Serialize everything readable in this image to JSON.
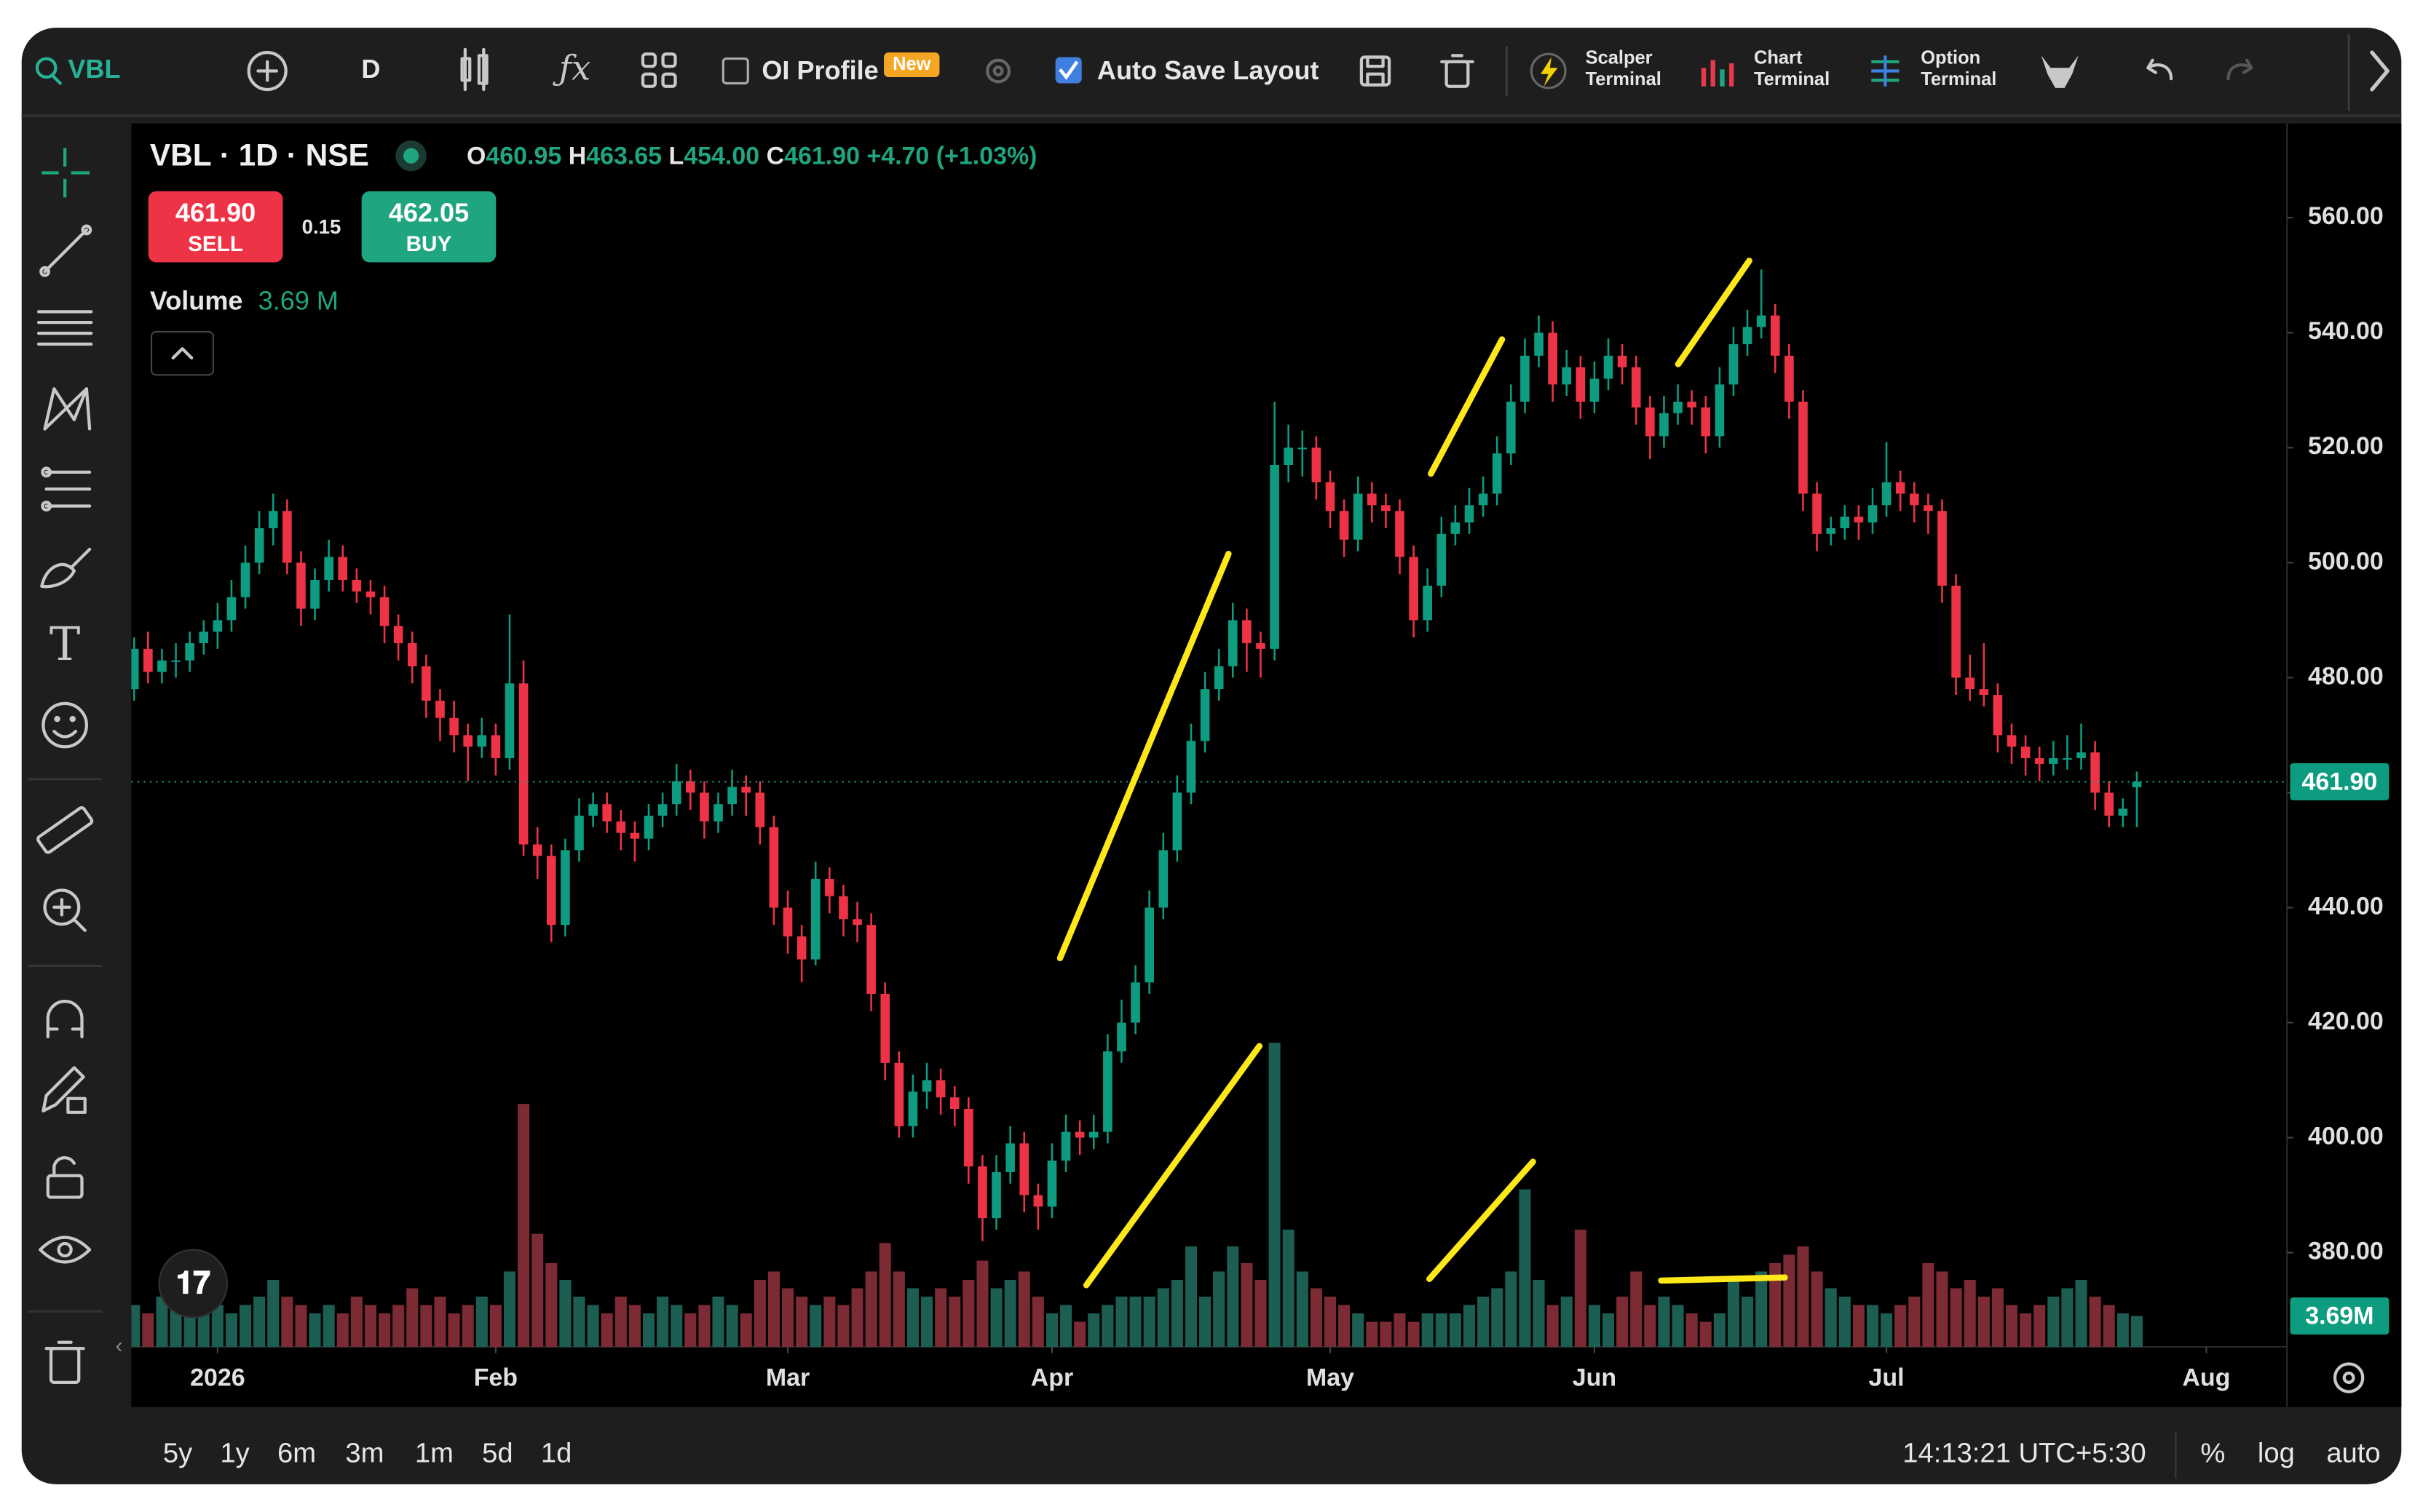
{
  "toolbar": {
    "symbol": "VBL",
    "interval": "D",
    "oi_profile": "OI Profile",
    "badge": "New",
    "auto_save": "Auto Save Layout",
    "scalper": [
      "Scalper",
      "Terminal"
    ],
    "chart_terminal": [
      "Chart",
      "Terminal"
    ],
    "option_terminal": [
      "Option",
      "Terminal"
    ]
  },
  "legend": {
    "title": "VBL · 1D · NSE",
    "open_key": "O",
    "open": "460.95",
    "high_key": "H",
    "high": "463.65",
    "low_key": "L",
    "low": "454.00",
    "close_key": "C",
    "close": "461.90",
    "change": "+4.70 (+1.03%)",
    "sell_price": "461.90",
    "sell": "SELL",
    "spread": "0.15",
    "buy_price": "462.05",
    "buy": "BUY",
    "volume_key": "Volume",
    "volume": "3.69 M"
  },
  "chart_data": {
    "type": "candlestick",
    "up_color": "#0d9c80",
    "down_color": "#ef3346",
    "volume_up_color": "#1c5f52",
    "volume_down_color": "#7c2a34",
    "grid": false,
    "xlim": [
      -0.2,
      154.8
    ],
    "xticks": [
      {
        "value": 6,
        "label": "2026"
      },
      {
        "value": 26,
        "label": "Feb"
      },
      {
        "value": 47,
        "label": "Mar"
      },
      {
        "value": 66,
        "label": "Apr"
      },
      {
        "value": 86,
        "label": "May"
      },
      {
        "value": 105,
        "label": "Jun"
      },
      {
        "value": 126,
        "label": "Jul"
      },
      {
        "value": 149,
        "label": "Aug"
      }
    ],
    "ylim": [
      363.6,
      576.4
    ],
    "yticks": [
      {
        "value": 380,
        "label": "380.00"
      },
      {
        "value": 400,
        "label": "400.00"
      },
      {
        "value": 420,
        "label": "420.00"
      },
      {
        "value": 440,
        "label": "440.00"
      },
      {
        "value": 460,
        "label": "460.00"
      },
      {
        "value": 480,
        "label": "480.00"
      },
      {
        "value": 500,
        "label": "500.00"
      },
      {
        "value": 520,
        "label": "520.00"
      },
      {
        "value": 540,
        "label": "540.00"
      },
      {
        "value": 560,
        "label": "560.00"
      }
    ],
    "y2lim": [
      0,
      146
    ],
    "last_price": {
      "value": 461.9,
      "label": "461.90"
    },
    "last_volume": {
      "value": 3.69,
      "label": "3.69M"
    },
    "candles": [
      [
        478,
        487,
        476,
        485
      ],
      [
        485,
        488,
        479,
        481
      ],
      [
        481,
        485,
        479,
        483
      ],
      [
        483,
        486,
        480,
        483
      ],
      [
        483,
        488,
        481,
        486
      ],
      [
        486,
        490,
        484,
        488
      ],
      [
        488,
        493,
        485,
        490
      ],
      [
        490,
        497,
        488,
        494
      ],
      [
        494,
        503,
        492,
        500
      ],
      [
        500,
        509,
        498,
        506
      ],
      [
        506,
        512,
        503,
        509
      ],
      [
        509,
        511,
        498,
        500
      ],
      [
        500,
        502,
        489,
        492
      ],
      [
        492,
        499,
        490,
        497
      ],
      [
        497,
        504,
        495,
        501
      ],
      [
        501,
        503,
        495,
        497
      ],
      [
        497,
        499,
        493,
        495
      ],
      [
        495,
        497,
        491,
        494
      ],
      [
        494,
        496,
        486,
        489
      ],
      [
        489,
        491,
        483,
        486
      ],
      [
        486,
        488,
        479,
        482
      ],
      [
        482,
        484,
        473,
        476
      ],
      [
        476,
        478,
        469,
        473
      ],
      [
        473,
        476,
        467,
        470
      ],
      [
        470,
        472,
        462,
        468
      ],
      [
        468,
        473,
        466,
        470
      ],
      [
        470,
        472,
        463,
        466
      ],
      [
        466,
        491,
        464,
        479
      ],
      [
        479,
        483,
        449,
        451
      ],
      [
        451,
        454,
        445,
        449
      ],
      [
        449,
        451,
        434,
        437
      ],
      [
        437,
        452,
        435,
        450
      ],
      [
        450,
        459,
        448,
        456
      ],
      [
        456,
        460,
        454,
        458
      ],
      [
        458,
        460,
        453,
        455
      ],
      [
        455,
        457,
        450,
        453
      ],
      [
        453,
        455,
        448,
        452
      ],
      [
        452,
        458,
        450,
        456
      ],
      [
        456,
        460,
        454,
        458
      ],
      [
        458,
        465,
        456,
        462
      ],
      [
        462,
        464,
        457,
        460
      ],
      [
        460,
        462,
        452,
        455
      ],
      [
        455,
        460,
        453,
        458
      ],
      [
        458,
        464,
        456,
        461
      ],
      [
        461,
        463,
        456,
        460
      ],
      [
        460,
        462,
        451,
        454
      ],
      [
        454,
        456,
        437,
        440
      ],
      [
        440,
        443,
        432,
        435
      ],
      [
        435,
        437,
        427,
        431
      ],
      [
        431,
        448,
        430,
        445
      ],
      [
        445,
        447,
        439,
        442
      ],
      [
        442,
        444,
        435,
        438
      ],
      [
        438,
        441,
        434,
        437
      ],
      [
        437,
        439,
        422,
        425
      ],
      [
        425,
        427,
        410,
        413
      ],
      [
        413,
        415,
        400,
        402
      ],
      [
        402,
        411,
        400,
        408
      ],
      [
        408,
        413,
        405,
        410
      ],
      [
        410,
        412,
        404,
        407
      ],
      [
        407,
        409,
        402,
        405
      ],
      [
        405,
        407,
        392,
        395
      ],
      [
        395,
        397,
        382,
        386
      ],
      [
        386,
        397,
        384,
        394
      ],
      [
        394,
        402,
        392,
        399
      ],
      [
        399,
        401,
        387,
        390
      ],
      [
        390,
        392,
        384,
        388
      ],
      [
        388,
        399,
        386,
        396
      ],
      [
        396,
        404,
        394,
        401
      ],
      [
        401,
        403,
        397,
        400
      ],
      [
        400,
        404,
        398,
        401
      ],
      [
        401,
        418,
        399,
        415
      ],
      [
        415,
        424,
        413,
        420
      ],
      [
        420,
        430,
        418,
        427
      ],
      [
        427,
        443,
        425,
        440
      ],
      [
        440,
        453,
        438,
        450
      ],
      [
        450,
        463,
        448,
        460
      ],
      [
        460,
        472,
        458,
        469
      ],
      [
        469,
        481,
        467,
        478
      ],
      [
        478,
        485,
        476,
        482
      ],
      [
        482,
        493,
        480,
        490
      ],
      [
        490,
        492,
        481,
        486
      ],
      [
        486,
        488,
        480,
        485
      ],
      [
        485,
        528,
        483,
        517
      ],
      [
        517,
        524,
        514,
        520
      ],
      [
        520,
        523,
        515,
        520
      ],
      [
        520,
        522,
        511,
        514
      ],
      [
        514,
        516,
        506,
        509
      ],
      [
        509,
        511,
        501,
        504
      ],
      [
        504,
        515,
        502,
        512
      ],
      [
        512,
        514,
        507,
        510
      ],
      [
        510,
        512,
        506,
        509
      ],
      [
        509,
        511,
        498,
        501
      ],
      [
        501,
        503,
        487,
        490
      ],
      [
        490,
        499,
        488,
        496
      ],
      [
        496,
        508,
        494,
        505
      ],
      [
        505,
        510,
        503,
        507
      ],
      [
        507,
        513,
        505,
        510
      ],
      [
        510,
        515,
        508,
        512
      ],
      [
        512,
        522,
        510,
        519
      ],
      [
        519,
        531,
        517,
        528
      ],
      [
        528,
        539,
        526,
        536
      ],
      [
        536,
        543,
        534,
        540
      ],
      [
        540,
        542,
        528,
        531
      ],
      [
        531,
        537,
        529,
        534
      ],
      [
        534,
        536,
        525,
        528
      ],
      [
        528,
        535,
        526,
        532
      ],
      [
        532,
        539,
        530,
        536
      ],
      [
        536,
        538,
        531,
        534
      ],
      [
        534,
        536,
        524,
        527
      ],
      [
        527,
        529,
        518,
        522
      ],
      [
        522,
        529,
        520,
        526
      ],
      [
        526,
        531,
        524,
        528
      ],
      [
        528,
        530,
        524,
        527
      ],
      [
        527,
        529,
        519,
        522
      ],
      [
        522,
        534,
        520,
        531
      ],
      [
        531,
        541,
        529,
        538
      ],
      [
        538,
        544,
        536,
        541
      ],
      [
        541,
        551,
        539,
        543
      ],
      [
        543,
        545,
        533,
        536
      ],
      [
        536,
        538,
        525,
        528
      ],
      [
        528,
        530,
        509,
        512
      ],
      [
        512,
        514,
        502,
        505
      ],
      [
        505,
        508,
        503,
        506
      ],
      [
        506,
        510,
        504,
        508
      ],
      [
        508,
        510,
        504,
        507
      ],
      [
        507,
        513,
        505,
        510
      ],
      [
        510,
        521,
        508,
        514
      ],
      [
        514,
        516,
        509,
        512
      ],
      [
        512,
        514,
        507,
        510
      ],
      [
        510,
        512,
        505,
        509
      ],
      [
        509,
        511,
        493,
        496
      ],
      [
        496,
        498,
        477,
        480
      ],
      [
        480,
        484,
        476,
        478
      ],
      [
        478,
        486,
        475,
        477
      ],
      [
        477,
        479,
        467,
        470
      ],
      [
        470,
        472,
        465,
        468
      ],
      [
        468,
        470,
        463,
        466
      ],
      [
        466,
        468,
        462,
        465
      ],
      [
        465,
        469,
        463,
        466
      ],
      [
        466,
        470,
        464,
        466
      ],
      [
        466,
        472,
        464,
        467
      ],
      [
        467,
        469,
        457,
        460
      ],
      [
        460,
        462,
        454,
        456
      ],
      [
        456,
        459,
        454,
        457.2
      ],
      [
        460.95,
        463.65,
        454,
        461.9
      ]
    ],
    "volumes": [
      5,
      4,
      6,
      5,
      4,
      7,
      5,
      4,
      5,
      6,
      8,
      6,
      5,
      4,
      5,
      4,
      6,
      5,
      4,
      5,
      7,
      5,
      6,
      4,
      5,
      6,
      5,
      9,
      29,
      13.5,
      10,
      8,
      6,
      5,
      4,
      6,
      5,
      4,
      6,
      5,
      4,
      5,
      6,
      5,
      4,
      8,
      9,
      7,
      6,
      5,
      6,
      5,
      7,
      9,
      12.4,
      9,
      7,
      6,
      7,
      6,
      8,
      10.3,
      7,
      8,
      9,
      6,
      4,
      5,
      3,
      4,
      5,
      6,
      6,
      6,
      7,
      8,
      12,
      6,
      9,
      12,
      10,
      8,
      36.3,
      14,
      9,
      7,
      6,
      5,
      4,
      3,
      3,
      4,
      3,
      4,
      4,
      4,
      5,
      6,
      7,
      9,
      18.8,
      8,
      5,
      6,
      14,
      5,
      4,
      6,
      9,
      5,
      6,
      5,
      4,
      3,
      4,
      8,
      6,
      9,
      10,
      11,
      12,
      9,
      7,
      6,
      5,
      5,
      4,
      5,
      6,
      10,
      9,
      7,
      8,
      6,
      7,
      5,
      4,
      5,
      6,
      7,
      8,
      6,
      5,
      4,
      3.69
    ]
  },
  "footer": {
    "ranges": [
      "5y",
      "1y",
      "6m",
      "3m",
      "1m",
      "5d",
      "1d"
    ],
    "time": "14:13:21 UTC+5:30",
    "percent": "%",
    "log": "log",
    "auto": "auto"
  }
}
